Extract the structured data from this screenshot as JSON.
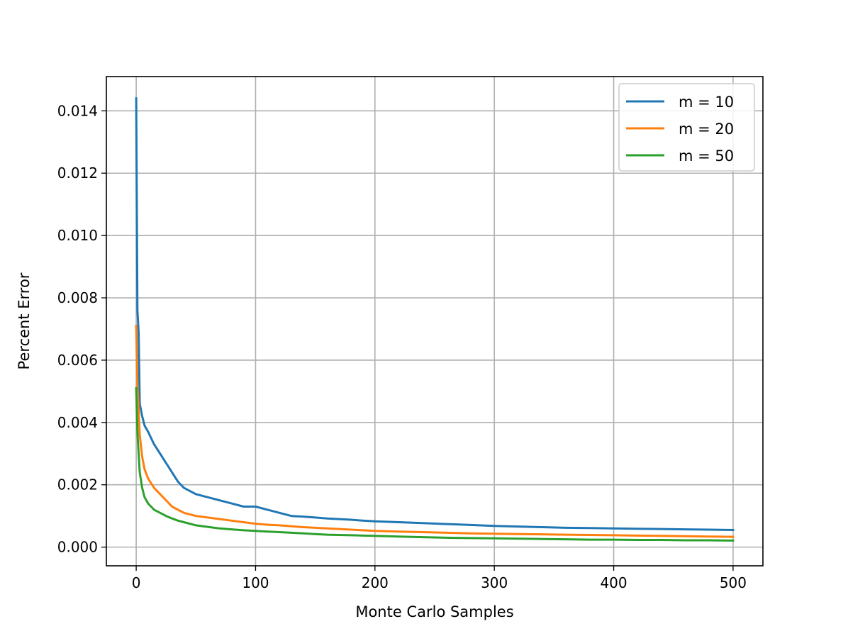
{
  "chart_data": {
    "type": "line",
    "title": "",
    "xlabel": "Monte Carlo Samples",
    "ylabel": "Percent Error",
    "xlim": [
      -25,
      525
    ],
    "ylim": [
      -0.0006,
      0.0151
    ],
    "xticks": [
      0,
      100,
      200,
      300,
      400,
      500
    ],
    "xtick_labels": [
      "0",
      "100",
      "200",
      "300",
      "400",
      "500"
    ],
    "yticks": [
      0.0,
      0.002,
      0.004,
      0.006,
      0.008,
      0.01,
      0.012,
      0.014
    ],
    "ytick_labels": [
      "0.000",
      "0.002",
      "0.004",
      "0.006",
      "0.008",
      "0.010",
      "0.012",
      "0.014"
    ],
    "grid": true,
    "legend_position": "top-right",
    "series": [
      {
        "name": "m = 10",
        "color": "#1f77b4",
        "x": [
          0,
          1,
          2,
          3,
          5,
          7,
          10,
          15,
          20,
          25,
          30,
          35,
          40,
          50,
          60,
          70,
          80,
          90,
          100,
          110,
          120,
          130,
          140,
          150,
          160,
          170,
          180,
          190,
          200,
          220,
          240,
          260,
          280,
          300,
          320,
          340,
          360,
          380,
          400,
          420,
          440,
          460,
          480,
          500
        ],
        "values": [
          0.0144,
          0.0076,
          0.0069,
          0.0046,
          0.0042,
          0.0039,
          0.0037,
          0.0033,
          0.003,
          0.0027,
          0.0024,
          0.0021,
          0.0019,
          0.0017,
          0.0016,
          0.0015,
          0.0014,
          0.0013,
          0.0013,
          0.0012,
          0.0011,
          0.001,
          0.00098,
          0.00095,
          0.00092,
          0.0009,
          0.00088,
          0.00085,
          0.00083,
          0.0008,
          0.00077,
          0.00074,
          0.00071,
          0.00068,
          0.00066,
          0.00064,
          0.00062,
          0.00061,
          0.0006,
          0.00059,
          0.00058,
          0.00057,
          0.00056,
          0.00055
        ]
      },
      {
        "name": "m = 20",
        "color": "#ff7f0e",
        "x": [
          0,
          1,
          2,
          3,
          5,
          7,
          10,
          15,
          20,
          25,
          30,
          35,
          40,
          50,
          60,
          70,
          80,
          90,
          100,
          110,
          120,
          130,
          140,
          150,
          160,
          170,
          180,
          190,
          200,
          220,
          240,
          260,
          280,
          300,
          320,
          340,
          360,
          380,
          400,
          420,
          440,
          460,
          480,
          500
        ],
        "values": [
          0.0071,
          0.0052,
          0.0044,
          0.0036,
          0.0029,
          0.0025,
          0.0022,
          0.0019,
          0.0017,
          0.0015,
          0.0013,
          0.0012,
          0.0011,
          0.001,
          0.00095,
          0.0009,
          0.00085,
          0.0008,
          0.00075,
          0.00072,
          0.0007,
          0.00067,
          0.00064,
          0.00062,
          0.0006,
          0.00058,
          0.00056,
          0.00054,
          0.00052,
          0.0005,
          0.00048,
          0.00046,
          0.00044,
          0.00043,
          0.00042,
          0.00041,
          0.0004,
          0.00039,
          0.00038,
          0.00037,
          0.00036,
          0.00035,
          0.00034,
          0.00033
        ]
      },
      {
        "name": "m = 50",
        "color": "#2ca02c",
        "x": [
          0,
          1,
          2,
          3,
          5,
          7,
          10,
          15,
          20,
          25,
          30,
          35,
          40,
          50,
          60,
          70,
          80,
          90,
          100,
          110,
          120,
          130,
          140,
          150,
          160,
          170,
          180,
          190,
          200,
          220,
          240,
          260,
          280,
          300,
          320,
          340,
          360,
          380,
          400,
          420,
          440,
          460,
          480,
          500
        ],
        "values": [
          0.0051,
          0.0037,
          0.003,
          0.0024,
          0.0019,
          0.0016,
          0.0014,
          0.0012,
          0.0011,
          0.001,
          0.00092,
          0.00085,
          0.0008,
          0.0007,
          0.00065,
          0.0006,
          0.00057,
          0.00054,
          0.00052,
          0.0005,
          0.00048,
          0.00046,
          0.00044,
          0.00042,
          0.0004,
          0.00039,
          0.00038,
          0.00037,
          0.00036,
          0.00034,
          0.00032,
          0.0003,
          0.00029,
          0.00028,
          0.00027,
          0.00026,
          0.00025,
          0.00024,
          0.00024,
          0.00023,
          0.00023,
          0.00022,
          0.00022,
          0.00021
        ]
      }
    ]
  }
}
